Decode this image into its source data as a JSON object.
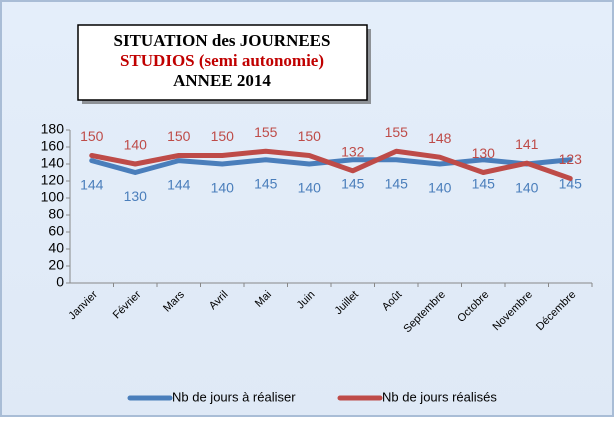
{
  "chart_data": {
    "type": "line",
    "title": [
      "SITUATION des JOURNEES",
      "STUDIOS (semi autonomie)",
      "ANNEE 2014"
    ],
    "title_colors": [
      "#000000",
      "#c00000",
      "#000000"
    ],
    "categories": [
      "Janvier",
      "Février",
      "Mars",
      "Avril",
      "Mai",
      "Juin",
      "Juillet",
      "Août",
      "Septembre",
      "Octobre",
      "Novembre",
      "Décembre"
    ],
    "series": [
      {
        "name": "Nb de jours à réaliser",
        "color": "#4a7ebb",
        "values": [
          144,
          130,
          144,
          140,
          145,
          140,
          145,
          145,
          140,
          145,
          140,
          145
        ]
      },
      {
        "name": "Nb de jours réalisés",
        "color": "#be4b48",
        "values": [
          150,
          140,
          150,
          150,
          155,
          150,
          132,
          155,
          148,
          130,
          141,
          123
        ]
      }
    ],
    "ylim": [
      0,
      180
    ],
    "yticks": [
      0,
      20,
      40,
      60,
      80,
      100,
      120,
      140,
      160,
      180
    ],
    "grid": false,
    "legend": "bottom"
  }
}
